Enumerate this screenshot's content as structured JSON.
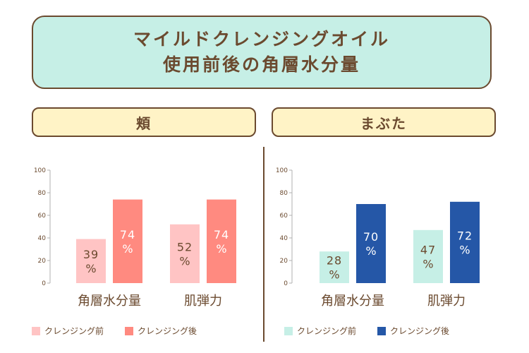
{
  "title": {
    "line1": "マイルドクレンジングオイル",
    "line2": "使用前後の角層水分量"
  },
  "panels": [
    {
      "header": "頬"
    },
    {
      "header": "まぶた"
    }
  ],
  "chart_data": [
    {
      "type": "bar",
      "categories": [
        "角層水分量",
        "肌弾力"
      ],
      "ylim": [
        0,
        100
      ],
      "yticks": [
        0,
        20,
        40,
        60,
        80,
        100
      ],
      "value_suffix": "%",
      "series": [
        {
          "name": "クレンジング前",
          "values": [
            39,
            52
          ],
          "color": "#ffc4c4",
          "label_color": "#6b4a2f"
        },
        {
          "name": "クレンジング後",
          "values": [
            74,
            74
          ],
          "color": "#ff8a80",
          "label_color": "#ffffff"
        }
      ]
    },
    {
      "type": "bar",
      "categories": [
        "角層水分量",
        "肌弾力"
      ],
      "ylim": [
        0,
        100
      ],
      "yticks": [
        0,
        20,
        40,
        60,
        80,
        100
      ],
      "value_suffix": "%",
      "series": [
        {
          "name": "クレンジング前",
          "values": [
            28,
            47
          ],
          "color": "#c6efe6",
          "label_color": "#6b4a2f"
        },
        {
          "name": "クレンジング後",
          "values": [
            70,
            72
          ],
          "color": "#2557a7",
          "label_color": "#ffffff"
        }
      ]
    }
  ]
}
